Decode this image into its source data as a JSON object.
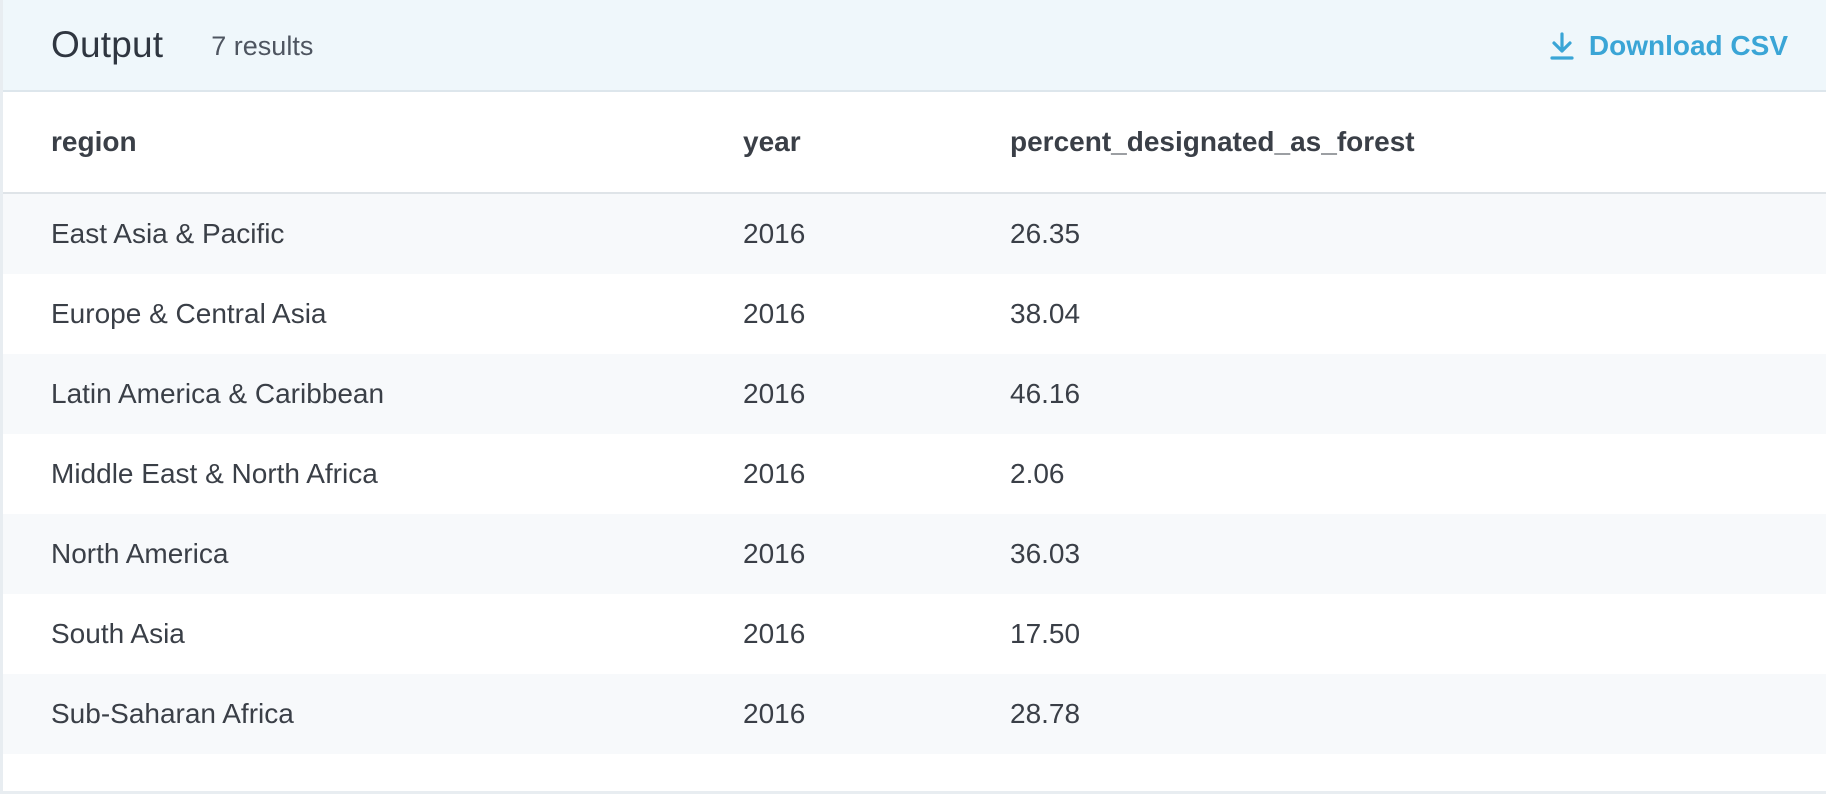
{
  "header": {
    "title": "Output",
    "results": "7 results",
    "download_label": "Download CSV",
    "download_icon": "download-icon"
  },
  "colors": {
    "header_bg": "#eff7fb",
    "accent": "#3aa5d6",
    "stripe": "#f7f9fb"
  },
  "table": {
    "columns": [
      "region",
      "year",
      "percent_designated_as_forest"
    ],
    "rows": [
      [
        "East Asia & Pacific",
        "2016",
        "26.35"
      ],
      [
        "Europe & Central Asia",
        "2016",
        "38.04"
      ],
      [
        "Latin America & Caribbean",
        "2016",
        "46.16"
      ],
      [
        "Middle East & North Africa",
        "2016",
        "2.06"
      ],
      [
        "North America",
        "2016",
        "36.03"
      ],
      [
        "South Asia",
        "2016",
        "17.50"
      ],
      [
        "Sub-Saharan Africa",
        "2016",
        "28.78"
      ]
    ]
  }
}
